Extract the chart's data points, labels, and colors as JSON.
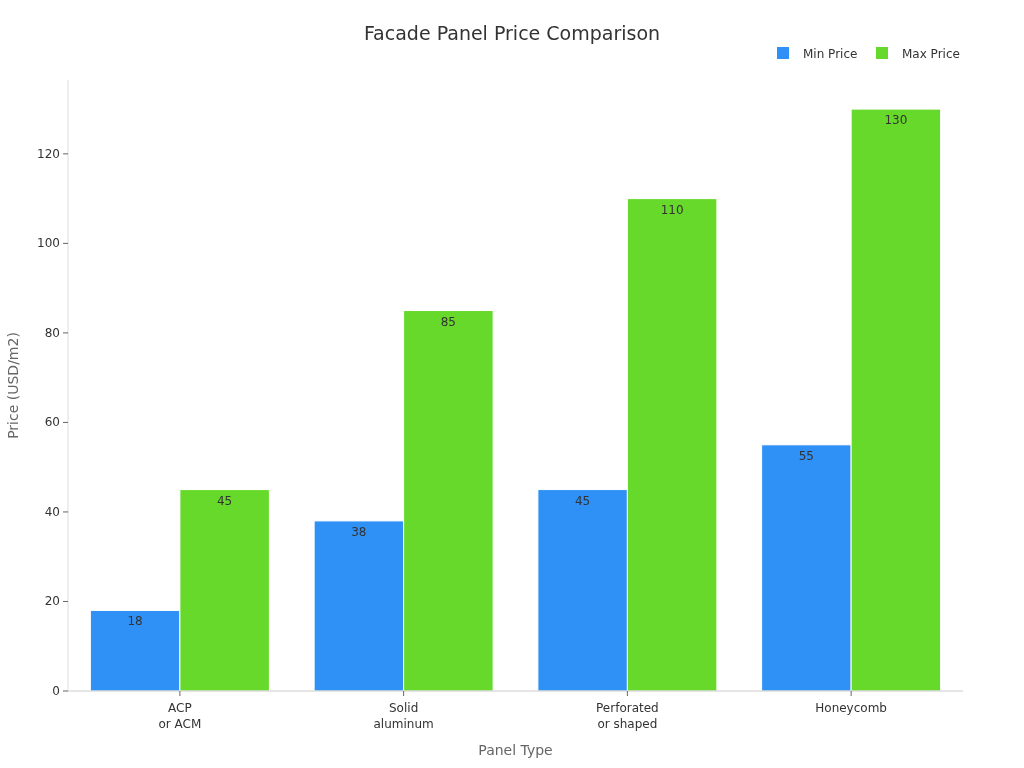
{
  "chart_data": {
    "type": "bar",
    "title": "Facade Panel Price Comparison",
    "xlabel": "Panel Type",
    "ylabel": "Price (USD/m2)",
    "categories": [
      "ACP\nor ACM",
      "Solid\naluminum",
      "Perforated\nor shaped",
      "Honeycomb"
    ],
    "series": [
      {
        "name": "Min Price",
        "color": "#2f91f5",
        "values": [
          18,
          38,
          45,
          55
        ]
      },
      {
        "name": "Max Price",
        "color": "#66d92a",
        "values": [
          45,
          85,
          110,
          130
        ]
      }
    ],
    "ylim": [
      0,
      136.5
    ],
    "yticks": [
      0,
      20,
      40,
      60,
      80,
      100,
      120
    ],
    "grid": false,
    "legend": "top right",
    "data_labels": true
  }
}
